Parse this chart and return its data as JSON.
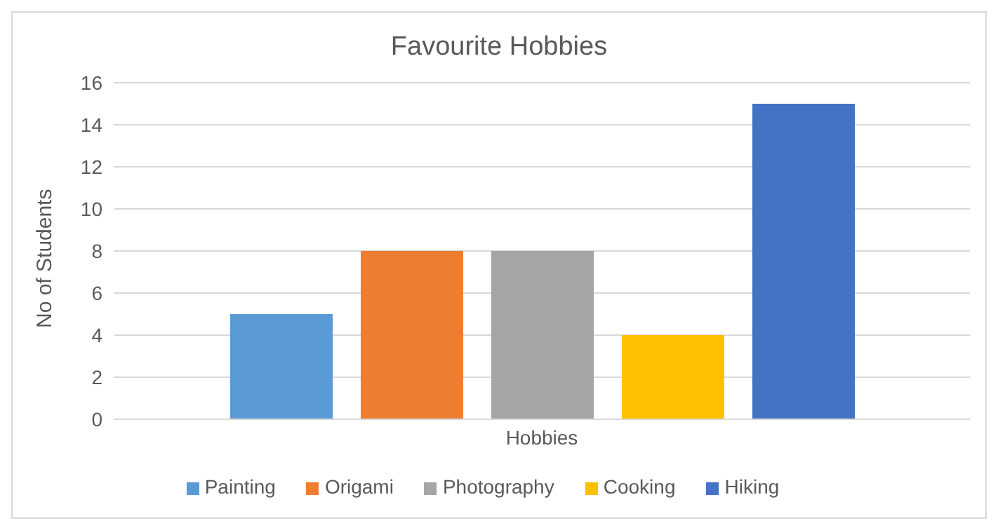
{
  "chart_data": {
    "type": "bar",
    "title": "Favourite Hobbies",
    "ylabel": "No of Students",
    "categories": [
      "Hobbies"
    ],
    "series": [
      {
        "name": "Painting",
        "color": "#5b9bd5",
        "values": [
          5
        ]
      },
      {
        "name": "Origami",
        "color": "#ed7d31",
        "values": [
          8
        ]
      },
      {
        "name": "Photography",
        "color": "#a5a5a5",
        "values": [
          8
        ]
      },
      {
        "name": "Cooking",
        "color": "#ffc000",
        "values": [
          4
        ]
      },
      {
        "name": "Hiking",
        "color": "#4472c4",
        "values": [
          15
        ]
      }
    ],
    "ylim": [
      0,
      16
    ],
    "yticks": [
      0,
      2,
      4,
      6,
      8,
      10,
      12,
      14,
      16
    ],
    "grid": "y",
    "legend": "bottom"
  }
}
